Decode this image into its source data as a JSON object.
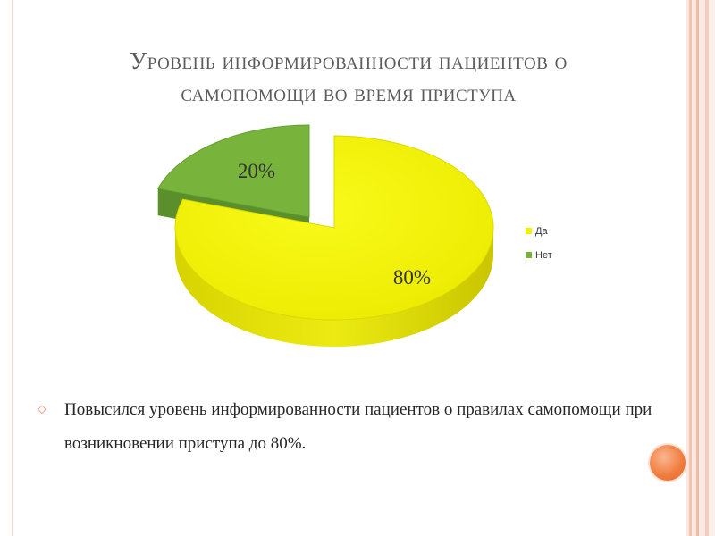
{
  "title": {
    "line1": "Уровень информированности пациентов о",
    "line2": "самопомощи во время приступа"
  },
  "chart_data": {
    "type": "pie",
    "title": "",
    "categories": [
      "Да",
      "Нет"
    ],
    "values": [
      80,
      20
    ],
    "value_labels": [
      "80%",
      "20%"
    ],
    "legend": "right",
    "legend_entries": [
      "Да",
      "Нет"
    ],
    "colors": [
      "#f2f200",
      "#78b43c"
    ],
    "exploded": "Нет",
    "style": "3d"
  },
  "bullet": {
    "text": "Повысился уровень информированности пациентов о правилах самопомощи при возникновении приступа до 80%."
  },
  "colors": {
    "title": "#5c5c5c",
    "bullet_mark": "#e88c6a",
    "accent": "#f07b3c"
  }
}
